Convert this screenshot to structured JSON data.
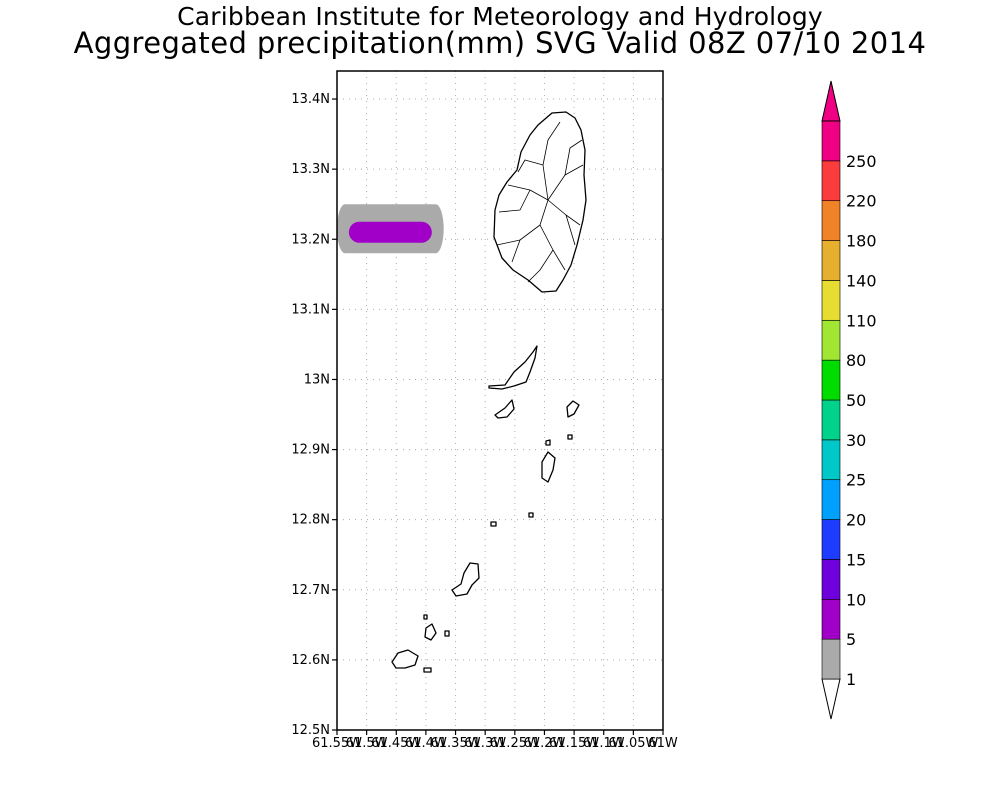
{
  "title_line1": "Caribbean Institute for Meteorology and Hydrology",
  "title_line2": "Aggregated precipitation(mm) SVG Valid 08Z 07/10 2014",
  "map": {
    "lon_range": [
      -61.55,
      -61.0
    ],
    "lat_range": [
      12.5,
      13.44
    ],
    "grid": true,
    "x_ticks": [
      "61.55W",
      "61.5W",
      "61.45W",
      "61.4W",
      "61.35W",
      "61.3W",
      "61.25W",
      "61.2W",
      "61.15W",
      "61.1W",
      "61.05W",
      "61W"
    ],
    "x_tick_values": [
      -61.55,
      -61.5,
      -61.45,
      -61.4,
      -61.35,
      -61.3,
      -61.25,
      -61.2,
      -61.15,
      -61.1,
      -61.05,
      -61.0
    ],
    "y_ticks": [
      "12.5N",
      "12.6N",
      "12.7N",
      "12.8N",
      "12.9N",
      "13N",
      "13.1N",
      "13.2N",
      "13.3N",
      "13.4N"
    ],
    "y_tick_values": [
      12.5,
      12.6,
      12.7,
      12.8,
      12.9,
      13.0,
      13.1,
      13.2,
      13.3,
      13.4
    ],
    "precip_areas": [
      {
        "class": "1-5 mm",
        "color": "#aaaaaa",
        "lon": [
          -61.55,
          -61.37
        ],
        "lat": [
          13.18,
          13.25
        ]
      },
      {
        "class": "5-10 mm",
        "color": "#a000c8",
        "lon": [
          -61.53,
          -61.39
        ],
        "lat": [
          13.195,
          13.225
        ]
      }
    ]
  },
  "colorbar": {
    "labels": [
      "1",
      "5",
      "10",
      "15",
      "20",
      "25",
      "30",
      "50",
      "80",
      "110",
      "140",
      "180",
      "220",
      "250"
    ],
    "colors": [
      "#aaaaaa",
      "#a000c8",
      "#6e00dc",
      "#1e3cff",
      "#00a0ff",
      "#00c8c8",
      "#00d28c",
      "#00dc00",
      "#a0e632",
      "#e6dc32",
      "#e6af2d",
      "#f08228",
      "#fa3c3c",
      "#f00082"
    ],
    "min_arrow_color": "#ffffff",
    "max_arrow_color": "#f00082"
  }
}
